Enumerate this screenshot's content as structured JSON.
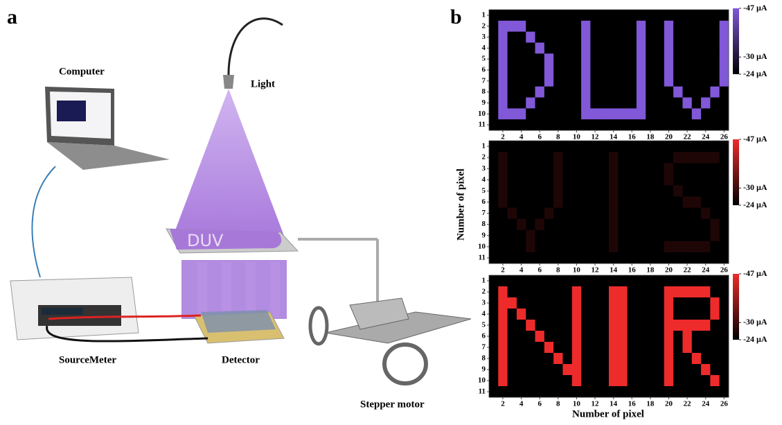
{
  "panel_a": {
    "label": "a",
    "computer": "Computer",
    "light": "Light",
    "mask_text": "DUV",
    "sourcemeter": "SourceMeter",
    "detector": "Detector",
    "motor": "Stepper motor"
  },
  "panel_b": {
    "label": "b",
    "xlabel": "Number of pixel",
    "ylabel": "Number of pixel"
  },
  "chart_data": [
    {
      "type": "heatmap",
      "xlim": [
        0.5,
        26.5
      ],
      "xticks": [
        2,
        4,
        6,
        8,
        10,
        12,
        14,
        16,
        18,
        20,
        22,
        24,
        26
      ],
      "ylim": [
        0.5,
        11.5
      ],
      "yticks": [
        1,
        2,
        3,
        4,
        5,
        6,
        7,
        8,
        9,
        10,
        11
      ],
      "zlim": [
        -24,
        -47
      ],
      "colors": [
        "#000000",
        "#8058d8"
      ],
      "colorbar_ticks": [
        {
          "value": -47,
          "label": "-47 µA"
        },
        {
          "value": -30,
          "label": "-30 µA"
        },
        {
          "value": -24,
          "label": "-24 µA"
        }
      ],
      "z": [
        [
          -24,
          -24,
          -24,
          -24,
          -24,
          -24,
          -24,
          -24,
          -24,
          -24,
          -24,
          -24,
          -24,
          -24,
          -24,
          -24,
          -24,
          -24,
          -24,
          -24,
          -24,
          -24,
          -24,
          -24,
          -24,
          -24
        ],
        [
          -24,
          -47,
          -47,
          -47,
          -24,
          -24,
          -24,
          -24,
          -24,
          -24,
          -47,
          -24,
          -24,
          -24,
          -24,
          -24,
          -47,
          -24,
          -24,
          -47,
          -24,
          -24,
          -24,
          -24,
          -24,
          -47
        ],
        [
          -24,
          -47,
          -24,
          -24,
          -47,
          -24,
          -24,
          -24,
          -24,
          -24,
          -47,
          -24,
          -24,
          -24,
          -24,
          -24,
          -47,
          -24,
          -24,
          -47,
          -24,
          -24,
          -24,
          -24,
          -24,
          -47
        ],
        [
          -24,
          -47,
          -24,
          -24,
          -24,
          -47,
          -24,
          -24,
          -24,
          -24,
          -47,
          -24,
          -24,
          -24,
          -24,
          -24,
          -47,
          -24,
          -24,
          -47,
          -24,
          -24,
          -24,
          -24,
          -24,
          -47
        ],
        [
          -24,
          -47,
          -24,
          -24,
          -24,
          -24,
          -47,
          -24,
          -24,
          -24,
          -47,
          -24,
          -24,
          -24,
          -24,
          -24,
          -47,
          -24,
          -24,
          -47,
          -24,
          -24,
          -24,
          -24,
          -24,
          -47
        ],
        [
          -24,
          -47,
          -24,
          -24,
          -24,
          -24,
          -47,
          -24,
          -24,
          -24,
          -47,
          -24,
          -24,
          -24,
          -24,
          -24,
          -47,
          -24,
          -24,
          -47,
          -24,
          -24,
          -24,
          -24,
          -24,
          -47
        ],
        [
          -24,
          -47,
          -24,
          -24,
          -24,
          -24,
          -47,
          -24,
          -24,
          -24,
          -47,
          -24,
          -24,
          -24,
          -24,
          -24,
          -47,
          -24,
          -24,
          -47,
          -24,
          -24,
          -24,
          -24,
          -24,
          -47
        ],
        [
          -24,
          -47,
          -24,
          -24,
          -24,
          -47,
          -24,
          -24,
          -24,
          -24,
          -47,
          -24,
          -24,
          -24,
          -24,
          -24,
          -47,
          -24,
          -24,
          -24,
          -47,
          -24,
          -24,
          -24,
          -47,
          -24
        ],
        [
          -24,
          -47,
          -24,
          -24,
          -47,
          -24,
          -24,
          -24,
          -24,
          -24,
          -47,
          -24,
          -24,
          -24,
          -24,
          -24,
          -47,
          -24,
          -24,
          -24,
          -24,
          -47,
          -24,
          -47,
          -24,
          -24
        ],
        [
          -24,
          -47,
          -47,
          -47,
          -24,
          -24,
          -24,
          -24,
          -24,
          -24,
          -47,
          -47,
          -47,
          -47,
          -47,
          -47,
          -47,
          -24,
          -24,
          -24,
          -24,
          -24,
          -47,
          -24,
          -24,
          -24
        ],
        [
          -24,
          -24,
          -24,
          -24,
          -24,
          -24,
          -24,
          -24,
          -24,
          -24,
          -24,
          -24,
          -24,
          -24,
          -24,
          -24,
          -24,
          -24,
          -24,
          -24,
          -24,
          -24,
          -24,
          -24,
          -24,
          -24
        ]
      ]
    },
    {
      "type": "heatmap",
      "xlim": [
        0.5,
        26.5
      ],
      "xticks": [
        2,
        4,
        6,
        8,
        10,
        12,
        14,
        16,
        18,
        20,
        22,
        24,
        26
      ],
      "ylim": [
        0.5,
        11.5
      ],
      "yticks": [
        1,
        2,
        3,
        4,
        5,
        6,
        7,
        8,
        9,
        10,
        11
      ],
      "zlim": [
        -24,
        -47
      ],
      "colors": [
        "#000000",
        "#ee2b2b"
      ],
      "colorbar_ticks": [
        {
          "value": -47,
          "label": "-47 µA"
        },
        {
          "value": -30,
          "label": "-30 µA"
        },
        {
          "value": -24,
          "label": "-24 µA"
        }
      ],
      "z": [
        [
          -24,
          -24,
          -24,
          -24,
          -24,
          -24,
          -24,
          -24,
          -24,
          -24,
          -24,
          -24,
          -24,
          -24,
          -24,
          -24,
          -24,
          -24,
          -24,
          -24,
          -24,
          -24,
          -24,
          -24,
          -24,
          -24
        ],
        [
          -24,
          -27,
          -24,
          -24,
          -24,
          -24,
          -24,
          -27,
          -24,
          -24,
          -24,
          -24,
          -24,
          -27,
          -24,
          -24,
          -24,
          -24,
          -24,
          -24,
          -27,
          -27,
          -27,
          -27,
          -27,
          -24
        ],
        [
          -24,
          -27,
          -24,
          -24,
          -24,
          -24,
          -24,
          -27,
          -24,
          -24,
          -24,
          -24,
          -24,
          -27,
          -24,
          -24,
          -24,
          -24,
          -24,
          -27,
          -24,
          -24,
          -24,
          -24,
          -24,
          -24
        ],
        [
          -24,
          -27,
          -24,
          -24,
          -24,
          -24,
          -24,
          -27,
          -24,
          -24,
          -24,
          -24,
          -24,
          -27,
          -24,
          -24,
          -24,
          -24,
          -24,
          -27,
          -24,
          -24,
          -24,
          -24,
          -24,
          -24
        ],
        [
          -24,
          -27,
          -24,
          -24,
          -24,
          -24,
          -24,
          -27,
          -24,
          -24,
          -24,
          -24,
          -24,
          -27,
          -24,
          -24,
          -24,
          -24,
          -24,
          -24,
          -27,
          -24,
          -24,
          -24,
          -24,
          -24
        ],
        [
          -24,
          -27,
          -24,
          -24,
          -24,
          -24,
          -24,
          -27,
          -24,
          -24,
          -24,
          -24,
          -24,
          -27,
          -24,
          -24,
          -24,
          -24,
          -24,
          -24,
          -24,
          -27,
          -27,
          -24,
          -24,
          -24
        ],
        [
          -24,
          -24,
          -27,
          -24,
          -24,
          -24,
          -27,
          -24,
          -24,
          -24,
          -24,
          -24,
          -24,
          -27,
          -24,
          -24,
          -24,
          -24,
          -24,
          -24,
          -24,
          -24,
          -24,
          -27,
          -24,
          -24
        ],
        [
          -24,
          -24,
          -24,
          -27,
          -24,
          -27,
          -24,
          -24,
          -24,
          -24,
          -24,
          -24,
          -24,
          -27,
          -24,
          -24,
          -24,
          -24,
          -24,
          -24,
          -24,
          -24,
          -24,
          -24,
          -27,
          -24
        ],
        [
          -24,
          -24,
          -24,
          -24,
          -27,
          -24,
          -24,
          -24,
          -24,
          -24,
          -24,
          -24,
          -24,
          -27,
          -24,
          -24,
          -24,
          -24,
          -24,
          -24,
          -24,
          -24,
          -24,
          -24,
          -27,
          -24
        ],
        [
          -24,
          -24,
          -24,
          -24,
          -27,
          -24,
          -24,
          -24,
          -24,
          -24,
          -24,
          -24,
          -24,
          -27,
          -24,
          -24,
          -24,
          -24,
          -24,
          -27,
          -27,
          -27,
          -27,
          -27,
          -24,
          -24
        ],
        [
          -24,
          -24,
          -24,
          -24,
          -24,
          -24,
          -24,
          -24,
          -24,
          -24,
          -24,
          -24,
          -24,
          -24,
          -24,
          -24,
          -24,
          -24,
          -24,
          -24,
          -24,
          -24,
          -24,
          -24,
          -24,
          -24
        ]
      ]
    },
    {
      "type": "heatmap",
      "xlim": [
        0.5,
        26.5
      ],
      "xticks": [
        2,
        4,
        6,
        8,
        10,
        12,
        14,
        16,
        18,
        20,
        22,
        24,
        26
      ],
      "ylim": [
        0.5,
        11.5
      ],
      "yticks": [
        1,
        2,
        3,
        4,
        5,
        6,
        7,
        8,
        9,
        10,
        11
      ],
      "zlim": [
        -24,
        -47
      ],
      "colors": [
        "#000000",
        "#ee2b2b"
      ],
      "colorbar_ticks": [
        {
          "value": -47,
          "label": "-47 µA"
        },
        {
          "value": -30,
          "label": "-30 µA"
        },
        {
          "value": -24,
          "label": "-24 µA"
        }
      ],
      "z": [
        [
          -24,
          -24,
          -24,
          -24,
          -24,
          -24,
          -24,
          -24,
          -24,
          -24,
          -24,
          -24,
          -24,
          -24,
          -24,
          -24,
          -24,
          -24,
          -24,
          -24,
          -24,
          -24,
          -24,
          -24,
          -24,
          -24
        ],
        [
          -24,
          -47,
          -24,
          -24,
          -24,
          -24,
          -24,
          -24,
          -24,
          -47,
          -24,
          -24,
          -24,
          -47,
          -47,
          -24,
          -24,
          -24,
          -24,
          -47,
          -47,
          -47,
          -47,
          -47,
          -24,
          -24
        ],
        [
          -24,
          -47,
          -47,
          -24,
          -24,
          -24,
          -24,
          -24,
          -24,
          -47,
          -24,
          -24,
          -24,
          -47,
          -47,
          -24,
          -24,
          -24,
          -24,
          -47,
          -24,
          -24,
          -24,
          -24,
          -47,
          -24
        ],
        [
          -24,
          -47,
          -24,
          -47,
          -24,
          -24,
          -24,
          -24,
          -24,
          -47,
          -24,
          -24,
          -24,
          -47,
          -47,
          -24,
          -24,
          -24,
          -24,
          -47,
          -24,
          -24,
          -24,
          -24,
          -47,
          -24
        ],
        [
          -24,
          -47,
          -24,
          -24,
          -47,
          -24,
          -24,
          -24,
          -24,
          -47,
          -24,
          -24,
          -24,
          -47,
          -47,
          -24,
          -24,
          -24,
          -24,
          -47,
          -47,
          -47,
          -47,
          -47,
          -24,
          -24
        ],
        [
          -24,
          -47,
          -24,
          -24,
          -24,
          -47,
          -24,
          -24,
          -24,
          -47,
          -24,
          -24,
          -24,
          -47,
          -47,
          -24,
          -24,
          -24,
          -24,
          -47,
          -24,
          -47,
          -24,
          -24,
          -24,
          -24
        ],
        [
          -24,
          -47,
          -24,
          -24,
          -24,
          -24,
          -47,
          -24,
          -24,
          -47,
          -24,
          -24,
          -24,
          -47,
          -47,
          -24,
          -24,
          -24,
          -24,
          -47,
          -24,
          -47,
          -24,
          -24,
          -24,
          -24
        ],
        [
          -24,
          -47,
          -24,
          -24,
          -24,
          -24,
          -24,
          -47,
          -24,
          -47,
          -24,
          -24,
          -24,
          -47,
          -47,
          -24,
          -24,
          -24,
          -24,
          -47,
          -24,
          -24,
          -47,
          -24,
          -24,
          -24
        ],
        [
          -24,
          -47,
          -24,
          -24,
          -24,
          -24,
          -24,
          -24,
          -47,
          -47,
          -24,
          -24,
          -24,
          -47,
          -47,
          -24,
          -24,
          -24,
          -24,
          -47,
          -24,
          -24,
          -24,
          -47,
          -24,
          -24
        ],
        [
          -24,
          -47,
          -24,
          -24,
          -24,
          -24,
          -24,
          -24,
          -24,
          -47,
          -24,
          -24,
          -24,
          -47,
          -47,
          -24,
          -24,
          -24,
          -24,
          -47,
          -24,
          -24,
          -24,
          -24,
          -47,
          -24
        ],
        [
          -24,
          -24,
          -24,
          -24,
          -24,
          -24,
          -24,
          -24,
          -24,
          -24,
          -24,
          -24,
          -24,
          -24,
          -24,
          -24,
          -24,
          -24,
          -24,
          -24,
          -24,
          -24,
          -24,
          -24,
          -24,
          -24
        ]
      ]
    }
  ]
}
